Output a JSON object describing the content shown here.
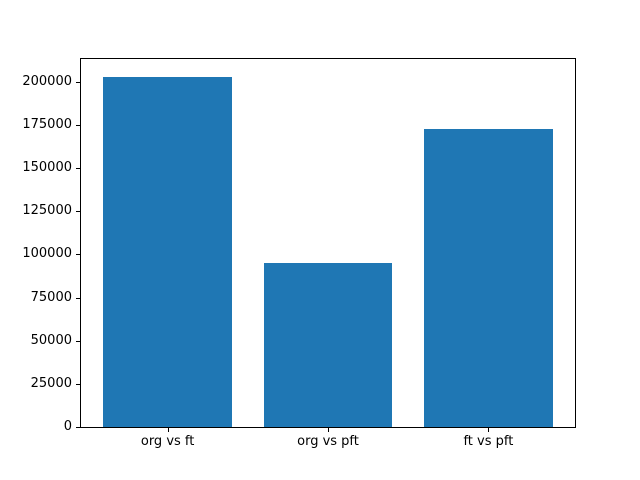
{
  "chart_data": {
    "type": "bar",
    "categories": [
      "org vs ft",
      "org vs pft",
      "ft vs pft"
    ],
    "values": [
      203000,
      95000,
      172500
    ],
    "bar_color": "#1f77b4",
    "axis_color": "#000000",
    "background_color": "#ffffff",
    "xlim": [
      -0.54,
      2.54
    ],
    "ylim": [
      0,
      213200
    ],
    "bar_width": 0.8,
    "yticks": [
      0,
      25000,
      50000,
      75000,
      100000,
      125000,
      150000,
      175000,
      200000
    ],
    "ytick_labels": [
      "0",
      "25000",
      "50000",
      "75000",
      "100000",
      "125000",
      "150000",
      "175000",
      "200000"
    ],
    "grid": false,
    "legend": null,
    "title": "",
    "xlabel": "",
    "ylabel": ""
  }
}
